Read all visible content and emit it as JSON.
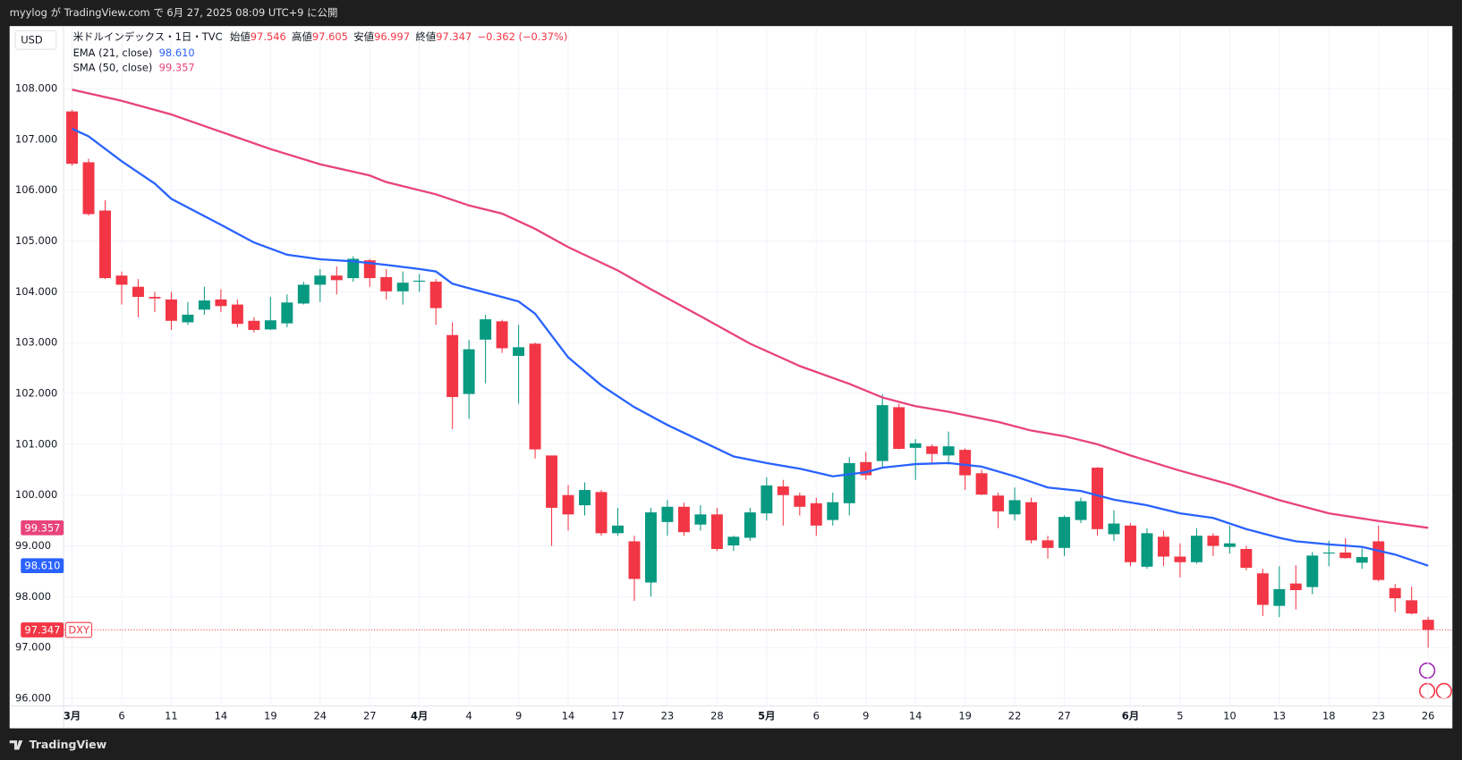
{
  "header": {
    "published": "myylog が TradingView.com で 6月 27, 2025 08:09 UTC+9 に公開",
    "brand": "TradingView"
  },
  "chart_data": {
    "type": "candlestick",
    "currency": "USD",
    "legend": {
      "symbol": "米ドルインデックス・1日・TVC",
      "ohlc": [
        {
          "key": "始値",
          "value": "97.546"
        },
        {
          "key": "高値",
          "value": "97.605"
        },
        {
          "key": "安値",
          "value": "96.997"
        },
        {
          "key": "終値",
          "value": "97.347"
        }
      ],
      "change": "−0.362 (−0.37%)"
    },
    "categories": [
      "2025-03-03",
      "2025-03-04",
      "2025-03-05",
      "2025-03-06",
      "2025-03-07",
      "2025-03-10",
      "2025-03-11",
      "2025-03-12",
      "2025-03-13",
      "2025-03-14",
      "2025-03-17",
      "2025-03-18",
      "2025-03-19",
      "2025-03-20",
      "2025-03-21",
      "2025-03-24",
      "2025-03-25",
      "2025-03-26",
      "2025-03-27",
      "2025-03-28",
      "2025-03-31",
      "2025-04-01",
      "2025-04-02",
      "2025-04-03",
      "2025-04-04",
      "2025-04-07",
      "2025-04-08",
      "2025-04-09",
      "2025-04-10",
      "2025-04-11",
      "2025-04-14",
      "2025-04-15",
      "2025-04-16",
      "2025-04-17",
      "2025-04-21",
      "2025-04-22",
      "2025-04-23",
      "2025-04-24",
      "2025-04-25",
      "2025-04-28",
      "2025-04-29",
      "2025-04-30",
      "2025-05-01",
      "2025-05-02",
      "2025-05-05",
      "2025-05-06",
      "2025-05-07",
      "2025-05-08",
      "2025-05-09",
      "2025-05-12",
      "2025-05-13",
      "2025-05-14",
      "2025-05-15",
      "2025-05-16",
      "2025-05-19",
      "2025-05-20",
      "2025-05-21",
      "2025-05-22",
      "2025-05-23",
      "2025-05-26",
      "2025-05-27",
      "2025-05-28",
      "2025-05-29",
      "2025-05-30",
      "2025-06-02",
      "2025-06-03",
      "2025-06-04",
      "2025-06-05",
      "2025-06-06",
      "2025-06-09",
      "2025-06-10",
      "2025-06-11",
      "2025-06-12",
      "2025-06-13",
      "2025-06-16",
      "2025-06-17",
      "2025-06-18",
      "2025-06-19",
      "2025-06-20",
      "2025-06-23",
      "2025-06-24",
      "2025-06-25",
      "2025-06-26"
    ],
    "series": [
      {
        "name": "DXY",
        "up_color": "#089981",
        "down_color": "#f23645",
        "open": [
          107.55,
          106.55,
          105.6,
          104.32,
          104.1,
          103.9,
          103.85,
          103.4,
          103.65,
          103.85,
          103.75,
          103.43,
          103.26,
          103.38,
          103.77,
          104.14,
          104.32,
          104.27,
          104.62,
          104.29,
          104.01,
          104.2,
          104.2,
          103.15,
          101.99,
          103.06,
          103.42,
          102.74,
          102.98,
          100.78,
          100.0,
          99.8,
          100.06,
          99.25,
          99.09,
          98.28,
          99.47,
          99.77,
          99.42,
          99.62,
          99.01,
          99.16,
          99.64,
          100.17,
          99.99,
          99.84,
          99.51,
          99.84,
          100.65,
          100.67,
          101.73,
          100.93,
          100.96,
          100.78,
          100.89,
          100.43,
          99.99,
          99.62,
          99.86,
          99.11,
          98.96,
          99.51,
          100.54,
          99.23,
          99.4,
          98.59,
          99.18,
          98.79,
          98.68,
          99.2,
          98.98,
          98.94,
          98.46,
          97.82,
          98.26,
          98.19,
          98.85,
          98.87,
          98.67,
          99.09,
          98.17,
          97.93,
          97.546
        ],
        "high": [
          107.58,
          106.62,
          105.8,
          104.4,
          104.25,
          104.0,
          104.0,
          103.8,
          104.1,
          104.05,
          103.85,
          103.5,
          103.9,
          103.95,
          104.2,
          104.45,
          104.5,
          104.7,
          104.65,
          104.45,
          104.4,
          104.35,
          104.25,
          103.4,
          103.05,
          103.55,
          103.45,
          103.35,
          103.0,
          100.78,
          100.2,
          100.25,
          100.1,
          99.75,
          99.2,
          99.75,
          99.9,
          99.85,
          99.8,
          99.75,
          99.2,
          99.75,
          100.35,
          100.3,
          100.05,
          99.95,
          100.05,
          100.75,
          100.85,
          101.98,
          101.8,
          101.1,
          101.0,
          101.25,
          100.92,
          100.5,
          100.05,
          100.15,
          99.95,
          99.2,
          99.6,
          99.95,
          100.55,
          99.7,
          99.45,
          99.35,
          99.3,
          99.05,
          99.35,
          99.25,
          99.4,
          99.0,
          98.55,
          98.6,
          98.62,
          98.88,
          99.1,
          99.15,
          98.95,
          99.4,
          98.25,
          98.2,
          97.605
        ],
        "low": [
          106.48,
          105.5,
          104.25,
          103.75,
          103.5,
          103.6,
          103.25,
          103.35,
          103.55,
          103.6,
          103.3,
          103.2,
          103.25,
          103.3,
          103.75,
          103.8,
          103.95,
          104.2,
          104.1,
          103.85,
          103.75,
          104.0,
          103.35,
          101.3,
          101.5,
          102.2,
          102.8,
          101.8,
          100.72,
          99.0,
          99.3,
          99.6,
          99.2,
          99.2,
          97.92,
          98.0,
          99.2,
          99.2,
          99.3,
          98.9,
          98.9,
          99.1,
          99.5,
          99.4,
          99.6,
          99.2,
          99.4,
          99.6,
          100.3,
          100.55,
          100.9,
          100.3,
          100.6,
          100.6,
          100.1,
          100.0,
          99.35,
          99.5,
          99.05,
          98.75,
          98.8,
          99.45,
          99.2,
          99.1,
          98.6,
          98.55,
          98.6,
          98.38,
          98.65,
          98.8,
          98.85,
          98.52,
          97.62,
          97.6,
          97.75,
          98.05,
          98.6,
          98.75,
          98.55,
          98.3,
          97.7,
          97.65,
          96.997
        ],
        "close": [
          106.52,
          105.53,
          104.27,
          104.14,
          103.9,
          103.87,
          103.43,
          103.55,
          103.83,
          103.72,
          103.37,
          103.25,
          103.44,
          103.79,
          104.14,
          104.32,
          104.23,
          104.65,
          104.27,
          104.01,
          104.18,
          104.22,
          103.68,
          101.93,
          102.87,
          103.46,
          102.89,
          102.91,
          100.9,
          99.75,
          99.62,
          100.1,
          99.25,
          99.4,
          98.35,
          99.66,
          99.77,
          99.27,
          99.62,
          98.94,
          99.18,
          99.66,
          100.19,
          100.0,
          99.77,
          99.4,
          99.86,
          100.63,
          100.39,
          101.77,
          100.91,
          101.02,
          100.81,
          100.96,
          100.39,
          100.01,
          99.68,
          99.9,
          99.11,
          98.96,
          99.57,
          99.88,
          99.33,
          99.44,
          98.68,
          99.25,
          98.79,
          98.68,
          99.2,
          99.0,
          99.05,
          98.57,
          97.84,
          98.15,
          98.13,
          98.81,
          98.87,
          98.76,
          98.78,
          98.33,
          97.97,
          97.67,
          97.347
        ]
      }
    ],
    "indicators": [
      {
        "name": "EMA (21, close)",
        "last": "98.610",
        "color": "#2962ff",
        "x": [
          "2025-03-03",
          "2025-03-04",
          "2025-03-06",
          "2025-03-10",
          "2025-03-11",
          "2025-03-14",
          "2025-03-18",
          "2025-03-20",
          "2025-03-24",
          "2025-03-26",
          "2025-03-28",
          "2025-04-01",
          "2025-04-02",
          "2025-04-03",
          "2025-04-04",
          "2025-04-08",
          "2025-04-09",
          "2025-04-10",
          "2025-04-14",
          "2025-04-16",
          "2025-04-21",
          "2025-04-23",
          "2025-04-25",
          "2025-04-29",
          "2025-05-01",
          "2025-05-05",
          "2025-05-07",
          "2025-05-09",
          "2025-05-12",
          "2025-05-14",
          "2025-05-16",
          "2025-05-20",
          "2025-05-22",
          "2025-05-26",
          "2025-05-28",
          "2025-05-30",
          "2025-06-03",
          "2025-06-05",
          "2025-06-09",
          "2025-06-11",
          "2025-06-13",
          "2025-06-16",
          "2025-06-18",
          "2025-06-20",
          "2025-06-24",
          "2025-06-26"
        ],
        "values": [
          107.21,
          107.06,
          106.57,
          106.13,
          105.83,
          105.32,
          104.97,
          104.73,
          104.64,
          104.6,
          104.53,
          104.45,
          104.4,
          104.16,
          104.07,
          103.9,
          103.81,
          103.57,
          102.71,
          102.16,
          101.73,
          101.38,
          101.07,
          100.76,
          100.63,
          100.52,
          100.37,
          100.45,
          100.54,
          100.61,
          100.63,
          100.56,
          100.37,
          100.15,
          100.08,
          99.91,
          99.8,
          99.64,
          99.55,
          99.33,
          99.16,
          99.09,
          99.03,
          98.98,
          98.83,
          98.61
        ]
      },
      {
        "name": "SMA (50, close)",
        "last": "99.357",
        "color": "#e8437a",
        "x": [
          "2025-03-03",
          "2025-03-06",
          "2025-03-11",
          "2025-03-14",
          "2025-03-19",
          "2025-03-24",
          "2025-03-27",
          "2025-03-28",
          "2025-04-02",
          "2025-04-04",
          "2025-04-08",
          "2025-04-10",
          "2025-04-14",
          "2025-04-17",
          "2025-04-22",
          "2025-04-25",
          "2025-04-30",
          "2025-05-05",
          "2025-05-08",
          "2025-05-12",
          "2025-05-14",
          "2025-05-16",
          "2025-05-21",
          "2025-05-23",
          "2025-05-27",
          "2025-05-29",
          "2025-06-02",
          "2025-06-05",
          "2025-06-10",
          "2025-06-13",
          "2025-06-18",
          "2025-06-23",
          "2025-06-26"
        ],
        "values": [
          107.98,
          107.76,
          107.49,
          107.15,
          106.81,
          106.51,
          106.29,
          106.16,
          105.92,
          105.7,
          105.54,
          105.24,
          104.88,
          104.42,
          104.05,
          103.52,
          102.98,
          102.54,
          102.19,
          101.92,
          101.75,
          101.64,
          101.44,
          101.27,
          101.16,
          101.0,
          100.78,
          100.48,
          100.21,
          99.9,
          99.64,
          99.49,
          99.357
        ]
      }
    ],
    "ylim": [
      95.85,
      109.23
    ],
    "yticks": [
      {
        "value": 96,
        "label": "96.000"
      },
      {
        "value": 97,
        "label": "97.000"
      },
      {
        "value": 98,
        "label": "98.000"
      },
      {
        "value": 99,
        "label": "99.000"
      },
      {
        "value": 100,
        "label": "100.000"
      },
      {
        "value": 101,
        "label": "101.000"
      },
      {
        "value": 102,
        "label": "102.000"
      },
      {
        "value": 103,
        "label": "103.000"
      },
      {
        "value": 104,
        "label": "104.000"
      },
      {
        "value": 105,
        "label": "105.000"
      },
      {
        "value": 106,
        "label": "106.000"
      },
      {
        "value": 107,
        "label": "107.000"
      },
      {
        "value": 108,
        "label": "108.000"
      }
    ],
    "xticks": [
      {
        "value": "2025-03-03",
        "label": "3月"
      },
      {
        "value": "2025-03-06",
        "label": "6"
      },
      {
        "value": "2025-03-11",
        "label": "11"
      },
      {
        "value": "2025-03-14",
        "label": "14"
      },
      {
        "value": "2025-03-19",
        "label": "19"
      },
      {
        "value": "2025-03-24",
        "label": "24"
      },
      {
        "value": "2025-03-27",
        "label": "27"
      },
      {
        "value": "2025-04-01",
        "label": "4月"
      },
      {
        "value": "2025-04-04",
        "label": "4"
      },
      {
        "value": "2025-04-09",
        "label": "9"
      },
      {
        "value": "2025-04-14",
        "label": "14"
      },
      {
        "value": "2025-04-17",
        "label": "17"
      },
      {
        "value": "2025-04-23",
        "label": "23"
      },
      {
        "value": "2025-04-28",
        "label": "28"
      },
      {
        "value": "2025-05-01",
        "label": "5月"
      },
      {
        "value": "2025-05-06",
        "label": "6"
      },
      {
        "value": "2025-05-09",
        "label": "9"
      },
      {
        "value": "2025-05-14",
        "label": "14"
      },
      {
        "value": "2025-05-19",
        "label": "19"
      },
      {
        "value": "2025-05-22",
        "label": "22"
      },
      {
        "value": "2025-05-27",
        "label": "27"
      },
      {
        "value": "2025-06-02",
        "label": "6月"
      },
      {
        "value": "2025-06-05",
        "label": "5"
      },
      {
        "value": "2025-06-10",
        "label": "10"
      },
      {
        "value": "2025-06-13",
        "label": "13"
      },
      {
        "value": "2025-06-18",
        "label": "18"
      },
      {
        "value": "2025-06-23",
        "label": "23"
      },
      {
        "value": "2025-06-26",
        "label": "26"
      }
    ],
    "grid": true
  }
}
